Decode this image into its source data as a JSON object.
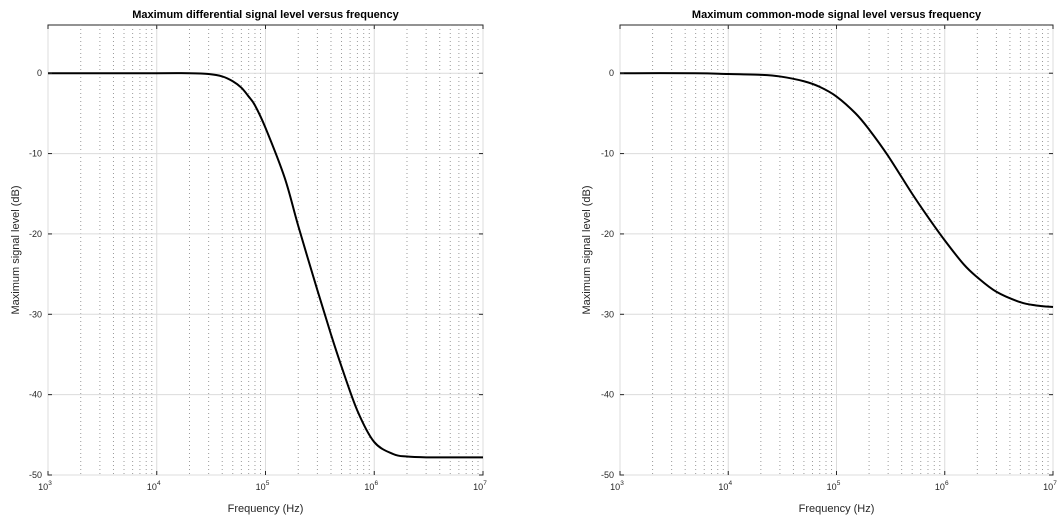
{
  "chart_data": [
    {
      "type": "line",
      "title": "Maximum differential signal level versus frequency",
      "xlabel": "Frequency (Hz)",
      "ylabel": "Maximum signal level (dB)",
      "xscale": "log",
      "xlim": [
        1000,
        10000000
      ],
      "ylim": [
        -50,
        6
      ],
      "xticks": [
        {
          "base": "10",
          "exp": "3"
        },
        {
          "base": "10",
          "exp": "4"
        },
        {
          "base": "10",
          "exp": "5"
        },
        {
          "base": "10",
          "exp": "6"
        },
        {
          "base": "10",
          "exp": "7"
        }
      ],
      "yticks": [
        "0",
        "-10",
        "-20",
        "-30",
        "-40",
        "-50"
      ],
      "ytick_values": [
        0,
        -10,
        -20,
        -30,
        -40,
        -50
      ],
      "grid": true,
      "minor_grid": true,
      "line_color": "#000000",
      "series": [
        {
          "x": [
            1000,
            10000,
            20000,
            30000,
            40000,
            50000,
            60000,
            70000,
            80000,
            100000,
            150000,
            200000,
            300000,
            400000,
            500000,
            700000,
            1000000,
            1500000,
            2000000,
            3000000,
            5000000,
            10000000
          ],
          "y": [
            0,
            0,
            0,
            -0.1,
            -0.4,
            -1.0,
            -1.8,
            -2.9,
            -4.0,
            -6.8,
            -13.0,
            -19.0,
            -27.0,
            -32.5,
            -36.5,
            -42.0,
            -45.9,
            -47.4,
            -47.7,
            -47.8,
            -47.8,
            -47.8
          ]
        }
      ]
    },
    {
      "type": "line",
      "title": "Maximum common-mode signal level versus frequency",
      "xlabel": "Frequency (Hz)",
      "ylabel": "Maximum signal level (dB)",
      "xscale": "log",
      "xlim": [
        1000,
        10000000
      ],
      "ylim": [
        -50,
        6
      ],
      "xticks": [
        {
          "base": "10",
          "exp": "3"
        },
        {
          "base": "10",
          "exp": "4"
        },
        {
          "base": "10",
          "exp": "5"
        },
        {
          "base": "10",
          "exp": "6"
        },
        {
          "base": "10",
          "exp": "7"
        }
      ],
      "yticks": [
        "0",
        "-10",
        "-20",
        "-30",
        "-40",
        "-50"
      ],
      "ytick_values": [
        0,
        -10,
        -20,
        -30,
        -40,
        -50
      ],
      "grid": true,
      "minor_grid": true,
      "line_color": "#000000",
      "series": [
        {
          "x": [
            1000,
            5000,
            10000,
            20000,
            30000,
            50000,
            70000,
            100000,
            150000,
            200000,
            300000,
            500000,
            700000,
            1000000,
            1500000,
            2000000,
            3000000,
            5000000,
            7000000,
            10000000
          ],
          "y": [
            0,
            0,
            -0.1,
            -0.2,
            -0.4,
            -1.0,
            -1.7,
            -2.9,
            -5.0,
            -7.0,
            -10.3,
            -15.0,
            -17.9,
            -20.8,
            -23.8,
            -25.4,
            -27.2,
            -28.5,
            -28.9,
            -29.1
          ]
        }
      ]
    }
  ]
}
